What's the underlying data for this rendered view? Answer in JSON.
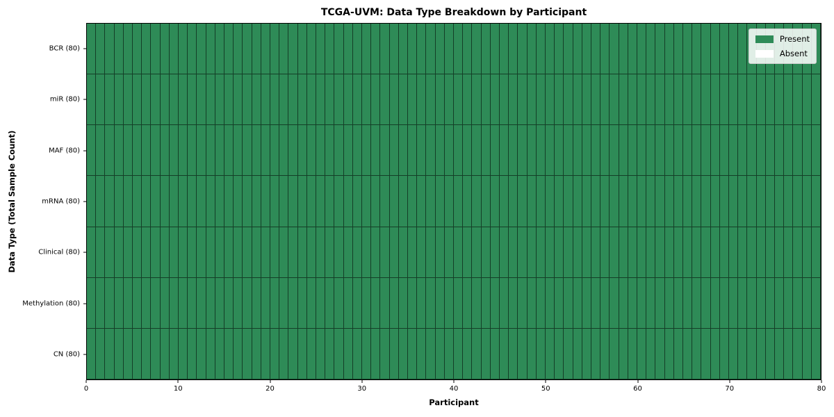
{
  "chart_data": {
    "type": "heatmap",
    "title": "TCGA-UVM: Data Type Breakdown by Participant",
    "xlabel": "Participant",
    "ylabel": "Data Type (Total Sample Count)",
    "xlim": [
      0,
      80
    ],
    "x_ticks": [
      0,
      10,
      20,
      30,
      40,
      50,
      60,
      70,
      80
    ],
    "n_participants": 80,
    "rows": [
      {
        "label": "BCR (80)",
        "present": 80,
        "absent": 0
      },
      {
        "label": "miR (80)",
        "present": 80,
        "absent": 0
      },
      {
        "label": "MAF (80)",
        "present": 80,
        "absent": 0
      },
      {
        "label": "mRNA (80)",
        "present": 80,
        "absent": 0
      },
      {
        "label": "Clinical (80)",
        "present": 80,
        "absent": 0
      },
      {
        "label": "Methylation (80)",
        "present": 80,
        "absent": 0
      },
      {
        "label": "CN (80)",
        "present": 80,
        "absent": 0
      }
    ],
    "legend": [
      {
        "label": "Present",
        "color": "#2e8b57"
      },
      {
        "label": "Absent",
        "color": "#ffffff"
      }
    ],
    "colors": {
      "present": "#2e8b57",
      "absent": "#ffffff",
      "cell_edge": "rgba(0,0,0,0.55)",
      "frame": "#000000",
      "legend_border": "#cccccc"
    },
    "legend_position": "upper right",
    "grid": false
  }
}
